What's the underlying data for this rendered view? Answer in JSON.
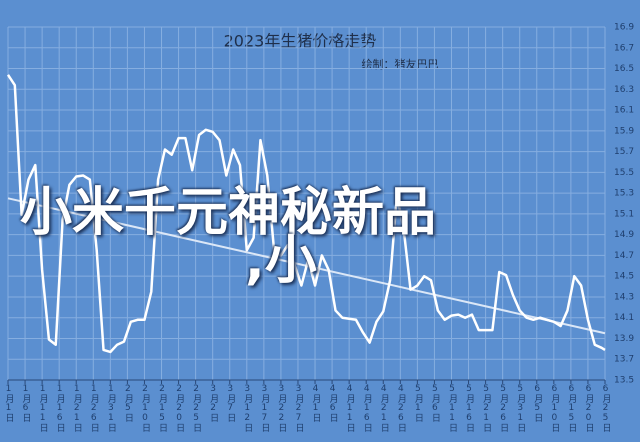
{
  "chart_data": {
    "type": "line",
    "title": "2023年生猪价格走势",
    "subtitle": "绘制：猪友巴巴",
    "overlay_text": [
      "小米千元神秘新品",
      ",小"
    ],
    "x": [
      0,
      2,
      4,
      6,
      8,
      10,
      12,
      14,
      16,
      18,
      20,
      22,
      24,
      26,
      28,
      30,
      32,
      34,
      36,
      38,
      40,
      42,
      44,
      46,
      48,
      50,
      52,
      54,
      56,
      58,
      60,
      62,
      64,
      66,
      68,
      70,
      72,
      74,
      76,
      78,
      80,
      82,
      84,
      86,
      88,
      90,
      92,
      94,
      96,
      98,
      100,
      102,
      104,
      106,
      108,
      110,
      112,
      114,
      116,
      118,
      120,
      122,
      124,
      126,
      128,
      130,
      132,
      134,
      136,
      138,
      140,
      142,
      144,
      146,
      148,
      150,
      152,
      154,
      156,
      158,
      160,
      162,
      164,
      166,
      168,
      170,
      172,
      174,
      175
    ],
    "series": [
      {
        "color": "#ffffff",
        "values": [
          16.44,
          16.34,
          15.09,
          15.43,
          15.57,
          14.56,
          13.89,
          13.84,
          15.04,
          15.38,
          15.46,
          15.47,
          15.43,
          14.75,
          13.79,
          13.77,
          13.84,
          13.87,
          14.06,
          14.08,
          14.08,
          14.35,
          15.43,
          15.72,
          15.67,
          15.83,
          15.83,
          15.52,
          15.86,
          15.91,
          15.89,
          15.81,
          15.47,
          15.72,
          15.57,
          14.75,
          14.87,
          15.81,
          15.47,
          14.75,
          14.7,
          14.8,
          14.61,
          14.41,
          14.66,
          14.41,
          14.7,
          14.56,
          14.17,
          14.1,
          14.09,
          14.08,
          13.96,
          13.86,
          14.06,
          14.16,
          14.46,
          15.28,
          14.95,
          14.37,
          14.41,
          14.5,
          14.46,
          14.17,
          14.08,
          14.12,
          14.13,
          14.1,
          14.13,
          13.98,
          13.98,
          13.98,
          14.54,
          14.51,
          14.32,
          14.17,
          14.1,
          14.08,
          14.1,
          14.08,
          14.06,
          14.02,
          14.17,
          14.5,
          14.41,
          14.08,
          13.84,
          13.81,
          13.79
        ]
      }
    ],
    "trendline": {
      "x": [
        0,
        175
      ],
      "values": [
        15.25,
        13.95
      ]
    },
    "xlim": [
      0,
      175
    ],
    "xticks": [
      {
        "value": 0,
        "label": "1月1日"
      },
      {
        "value": 5,
        "label": "1月6日"
      },
      {
        "value": 10,
        "label": "1月11日"
      },
      {
        "value": 15,
        "label": "1月16日"
      },
      {
        "value": 20,
        "label": "1月21日"
      },
      {
        "value": 25,
        "label": "1月26日"
      },
      {
        "value": 30,
        "label": "1月31日"
      },
      {
        "value": 35,
        "label": "2月5日"
      },
      {
        "value": 40,
        "label": "2月10日"
      },
      {
        "value": 45,
        "label": "2月15日"
      },
      {
        "value": 50,
        "label": "2月20日"
      },
      {
        "value": 55,
        "label": "2月25日"
      },
      {
        "value": 60,
        "label": "3月2日"
      },
      {
        "value": 65,
        "label": "3月7日"
      },
      {
        "value": 70,
        "label": "3月12日"
      },
      {
        "value": 75,
        "label": "3月17日"
      },
      {
        "value": 80,
        "label": "3月22日"
      },
      {
        "value": 85,
        "label": "3月27日"
      },
      {
        "value": 90,
        "label": "4月1日"
      },
      {
        "value": 95,
        "label": "4月6日"
      },
      {
        "value": 100,
        "label": "4月11日"
      },
      {
        "value": 105,
        "label": "4月16日"
      },
      {
        "value": 110,
        "label": "4月21日"
      },
      {
        "value": 115,
        "label": "4月26日"
      },
      {
        "value": 120,
        "label": "5月1日"
      },
      {
        "value": 125,
        "label": "5月6日"
      },
      {
        "value": 130,
        "label": "5月11日"
      },
      {
        "value": 135,
        "label": "5月16日"
      },
      {
        "value": 140,
        "label": "5月21日"
      },
      {
        "value": 145,
        "label": "5月26日"
      },
      {
        "value": 150,
        "label": "5月31日"
      },
      {
        "value": 155,
        "label": "6月5日"
      },
      {
        "value": 160,
        "label": "6月10日"
      },
      {
        "value": 165,
        "label": "6月15日"
      },
      {
        "value": 170,
        "label": "6月20日"
      },
      {
        "value": 175,
        "label": "6月25日"
      }
    ],
    "ylim": [
      13.5,
      16.9
    ],
    "yticks": [
      13.5,
      13.7,
      13.9,
      14.1,
      14.3,
      14.5,
      14.7,
      14.9,
      15.1,
      15.3,
      15.5,
      15.7,
      15.9,
      16.1,
      16.3,
      16.5,
      16.7,
      16.9
    ],
    "grid": true,
    "background": "#5b8fd0"
  }
}
